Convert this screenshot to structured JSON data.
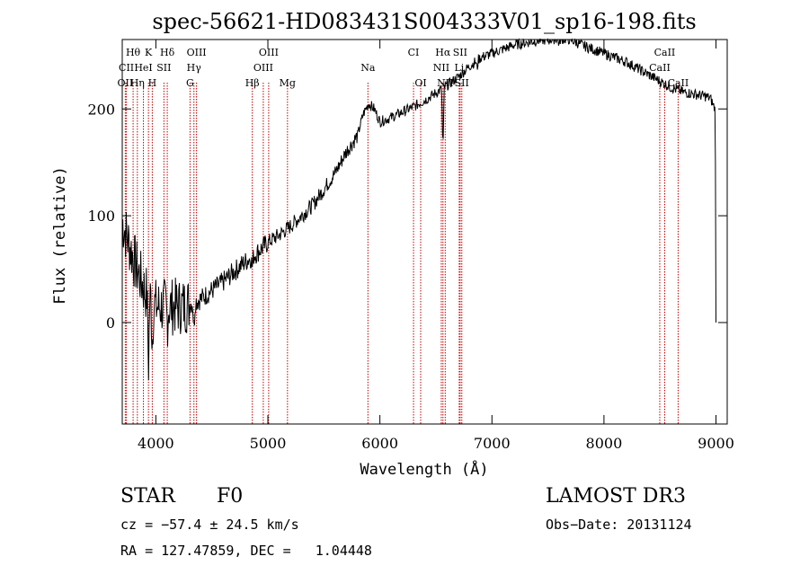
{
  "chart_data": {
    "type": "line",
    "title": "spec-56621-HD083431S004333V01_sp16-198.fits",
    "xlabel": "Wavelength (Å)",
    "ylabel": "Flux (relative)",
    "xlim": [
      3700,
      9100
    ],
    "ylim": [
      -95,
      265
    ],
    "xticks": [
      4000,
      5000,
      6000,
      7000,
      8000,
      9000
    ],
    "yticks": [
      0,
      100,
      200
    ],
    "continuum": [
      [
        3700,
        95
      ],
      [
        3800,
        60
      ],
      [
        3900,
        30
      ],
      [
        4000,
        15
      ],
      [
        4100,
        15
      ],
      [
        4200,
        15
      ],
      [
        4300,
        17
      ],
      [
        4400,
        22
      ],
      [
        4500,
        30
      ],
      [
        4600,
        38
      ],
      [
        4700,
        48
      ],
      [
        4800,
        57
      ],
      [
        4900,
        65
      ],
      [
        5000,
        75
      ],
      [
        5100,
        82
      ],
      [
        5200,
        90
      ],
      [
        5300,
        100
      ],
      [
        5400,
        110
      ],
      [
        5500,
        125
      ],
      [
        5600,
        140
      ],
      [
        5700,
        160
      ],
      [
        5800,
        175
      ],
      [
        5850,
        195
      ],
      [
        5900,
        205
      ],
      [
        5950,
        200
      ],
      [
        6000,
        188
      ],
      [
        6100,
        192
      ],
      [
        6200,
        197
      ],
      [
        6300,
        202
      ],
      [
        6400,
        208
      ],
      [
        6500,
        215
      ],
      [
        6600,
        222
      ],
      [
        6700,
        230
      ],
      [
        6800,
        240
      ],
      [
        6900,
        248
      ],
      [
        7000,
        252
      ],
      [
        7100,
        256
      ],
      [
        7200,
        260
      ],
      [
        7300,
        262
      ],
      [
        7400,
        264
      ],
      [
        7500,
        265
      ],
      [
        7600,
        266
      ],
      [
        7700,
        265
      ],
      [
        7800,
        260
      ],
      [
        7900,
        256
      ],
      [
        8000,
        252
      ],
      [
        8100,
        248
      ],
      [
        8200,
        244
      ],
      [
        8300,
        238
      ],
      [
        8400,
        232
      ],
      [
        8500,
        226
      ],
      [
        8600,
        220
      ],
      [
        8700,
        216
      ],
      [
        8800,
        214
      ],
      [
        8900,
        212
      ],
      [
        8950,
        210
      ],
      [
        8990,
        200
      ]
    ],
    "features": [
      {
        "w": 6563,
        "d": -60
      },
      {
        "w": 4102,
        "d": -15
      },
      {
        "w": 4340,
        "d": -25
      },
      {
        "w": 4861,
        "d": -10
      },
      {
        "w": 3934,
        "d": -70
      },
      {
        "w": 3968,
        "d": -40
      },
      {
        "w": 6867,
        "d": -8
      },
      {
        "w": 7600,
        "d": -6
      }
    ],
    "end_drop": [
      [
        8995,
        150
      ],
      [
        9000,
        0
      ]
    ],
    "noise": {
      "seed": 7,
      "step": 5,
      "scale_by_range": [
        [
          3700,
          4300,
          55
        ],
        [
          4300,
          5000,
          20
        ],
        [
          5000,
          5800,
          15
        ],
        [
          5800,
          9000,
          10
        ]
      ]
    },
    "lines": [
      {
        "label": "Hθ",
        "w": 3797,
        "row": 0
      },
      {
        "label": "CII",
        "w": 3737,
        "row": 1
      },
      {
        "label": "OII",
        "w": 3727,
        "row": 2
      },
      {
        "label": "HeI",
        "w": 3889,
        "row": 1
      },
      {
        "label": "Hη",
        "w": 3835,
        "row": 2
      },
      {
        "label": "K",
        "w": 3934,
        "row": 0
      },
      {
        "label": "H",
        "w": 3968,
        "row": 2
      },
      {
        "label": "Hδ",
        "w": 4102,
        "row": 0
      },
      {
        "label": "SII",
        "w": 4072,
        "row": 1
      },
      {
        "label": "OIII",
        "w": 4363,
        "row": 0
      },
      {
        "label": "Hγ",
        "w": 4340,
        "row": 1
      },
      {
        "label": "G",
        "w": 4305,
        "row": 2
      },
      {
        "label": "Hβ",
        "w": 4861,
        "row": 2
      },
      {
        "label": "OIII",
        "w": 4959,
        "row": 1
      },
      {
        "label": "OIII",
        "w": 5007,
        "row": 0
      },
      {
        "label": "Mg",
        "w": 5175,
        "row": 2
      },
      {
        "label": "Na",
        "w": 5893,
        "row": 1
      },
      {
        "label": "CI",
        "w": 6300,
        "row": 0
      },
      {
        "label": "OI",
        "w": 6364,
        "row": 2
      },
      {
        "label": "Hα",
        "w": 6563,
        "row": 0
      },
      {
        "label": "NII",
        "w": 6548,
        "row": 1
      },
      {
        "label": "NII",
        "w": 6583,
        "row": 2
      },
      {
        "label": "SII",
        "w": 6716,
        "row": 0
      },
      {
        "label": "Li",
        "w": 6708,
        "row": 1
      },
      {
        "label": "SII",
        "w": 6731,
        "row": 2
      },
      {
        "label": "CaII",
        "w": 8542,
        "row": 0
      },
      {
        "label": "CaII",
        "w": 8498,
        "row": 1
      },
      {
        "label": "CaII",
        "w": 8662,
        "row": 2
      }
    ]
  },
  "info": {
    "object_class": "STAR",
    "subclass": "F0",
    "survey": "LAMOST DR3",
    "cz": "cz = −57.4 ± 24.5 km/s",
    "obs_date": "Obs−Date: 20131124",
    "coords": "RA = 127.47859, DEC =   1.04448"
  }
}
